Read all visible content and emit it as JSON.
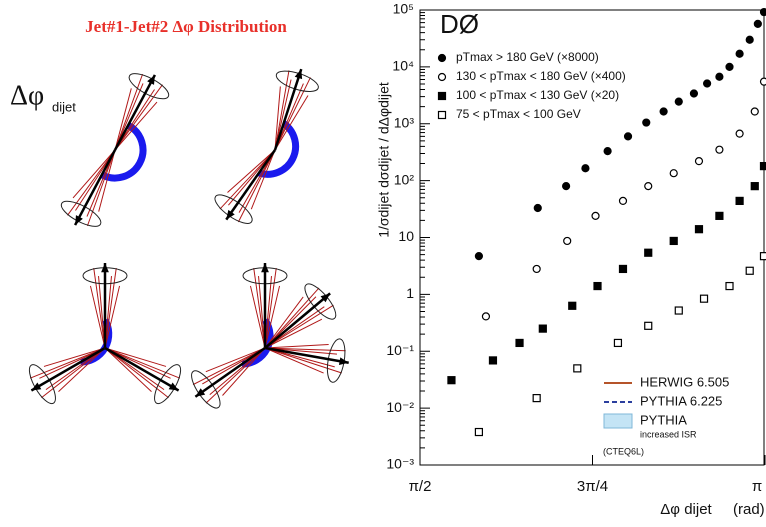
{
  "diagram": {
    "title": "Jet#1-Jet#2 Δφ Distribution",
    "label": "Δφ",
    "label_sub": "dijet"
  },
  "chart_data": {
    "type": "scatter",
    "experiment": "DØ",
    "y_label": "1/σdijet dσdijet / dΔφdijet",
    "x_label": "Δφ dijet",
    "x_unit": "(rad)",
    "log_y": true,
    "xlim": [
      1.5708,
      3.1416
    ],
    "xticks": [
      {
        "value": 1.5708,
        "label": "π/2"
      },
      {
        "value": 2.3562,
        "label": "3π/4"
      },
      {
        "value": 3.1416,
        "label": "π"
      }
    ],
    "ylim": [
      0.001,
      100000
    ],
    "yticks": [
      {
        "value": 100000,
        "label": "10⁵"
      },
      {
        "value": 10000,
        "label": "10⁴"
      },
      {
        "value": 1000,
        "label": "10³"
      },
      {
        "value": 100,
        "label": "10²"
      },
      10,
      1,
      {
        "value": 0.1,
        "label": "10⁻¹"
      },
      {
        "value": 0.01,
        "label": "10⁻²"
      },
      {
        "value": 0.001,
        "label": "10⁻³"
      }
    ],
    "series": [
      {
        "name": "pTmax > 180 GeV (×8000)",
        "marker": "circle-filled",
        "color": "#000000",
        "x": [
          1.839,
          2.107,
          2.236,
          2.324,
          2.425,
          2.518,
          2.601,
          2.68,
          2.749,
          2.818,
          2.878,
          2.934,
          2.98,
          3.026,
          3.072,
          3.109,
          3.137
        ],
        "values": [
          4.7,
          33,
          80,
          165,
          330,
          600,
          1050,
          1640,
          2450,
          3400,
          5100,
          6700,
          10000,
          17000,
          30000,
          57000,
          92000
        ]
      },
      {
        "name": "130 < pTmax < 180 GeV (×400)",
        "marker": "circle-open",
        "color": "#000000",
        "x": [
          1.871,
          2.102,
          2.241,
          2.37,
          2.495,
          2.61,
          2.726,
          2.841,
          2.934,
          3.026,
          3.095,
          3.137
        ],
        "values": [
          0.41,
          2.8,
          8.7,
          24,
          44,
          80,
          135,
          220,
          350,
          670,
          1640,
          5500
        ]
      },
      {
        "name": "100 < pTmax < 130 GeV (×20)",
        "marker": "square-filled",
        "color": "#000000",
        "x": [
          1.714,
          1.903,
          2.024,
          2.13,
          2.264,
          2.379,
          2.495,
          2.61,
          2.726,
          2.841,
          2.934,
          3.026,
          3.095,
          3.137
        ],
        "values": [
          0.031,
          0.069,
          0.14,
          0.25,
          0.63,
          1.4,
          2.8,
          5.4,
          8.7,
          14,
          24,
          44,
          80,
          180
        ]
      },
      {
        "name": "75 < pTmax < 100 GeV",
        "marker": "square-open",
        "color": "#000000",
        "x": [
          1.839,
          2.102,
          2.287,
          2.472,
          2.61,
          2.749,
          2.864,
          2.98,
          3.072,
          3.137
        ],
        "values": [
          0.0038,
          0.015,
          0.05,
          0.14,
          0.28,
          0.52,
          0.84,
          1.4,
          2.6,
          4.7
        ]
      }
    ],
    "model_legend": [
      {
        "name": "HERWIG 6.505",
        "color": "#b5542a",
        "style": "solid"
      },
      {
        "name": "PYTHIA 6.225",
        "color": "#2b3f9e",
        "style": "dashed"
      },
      {
        "name": "PYTHIA",
        "note": "increased ISR",
        "color": "#c4e4f5",
        "style": "band"
      }
    ],
    "pdf_note": "(CTEQ6L)"
  }
}
